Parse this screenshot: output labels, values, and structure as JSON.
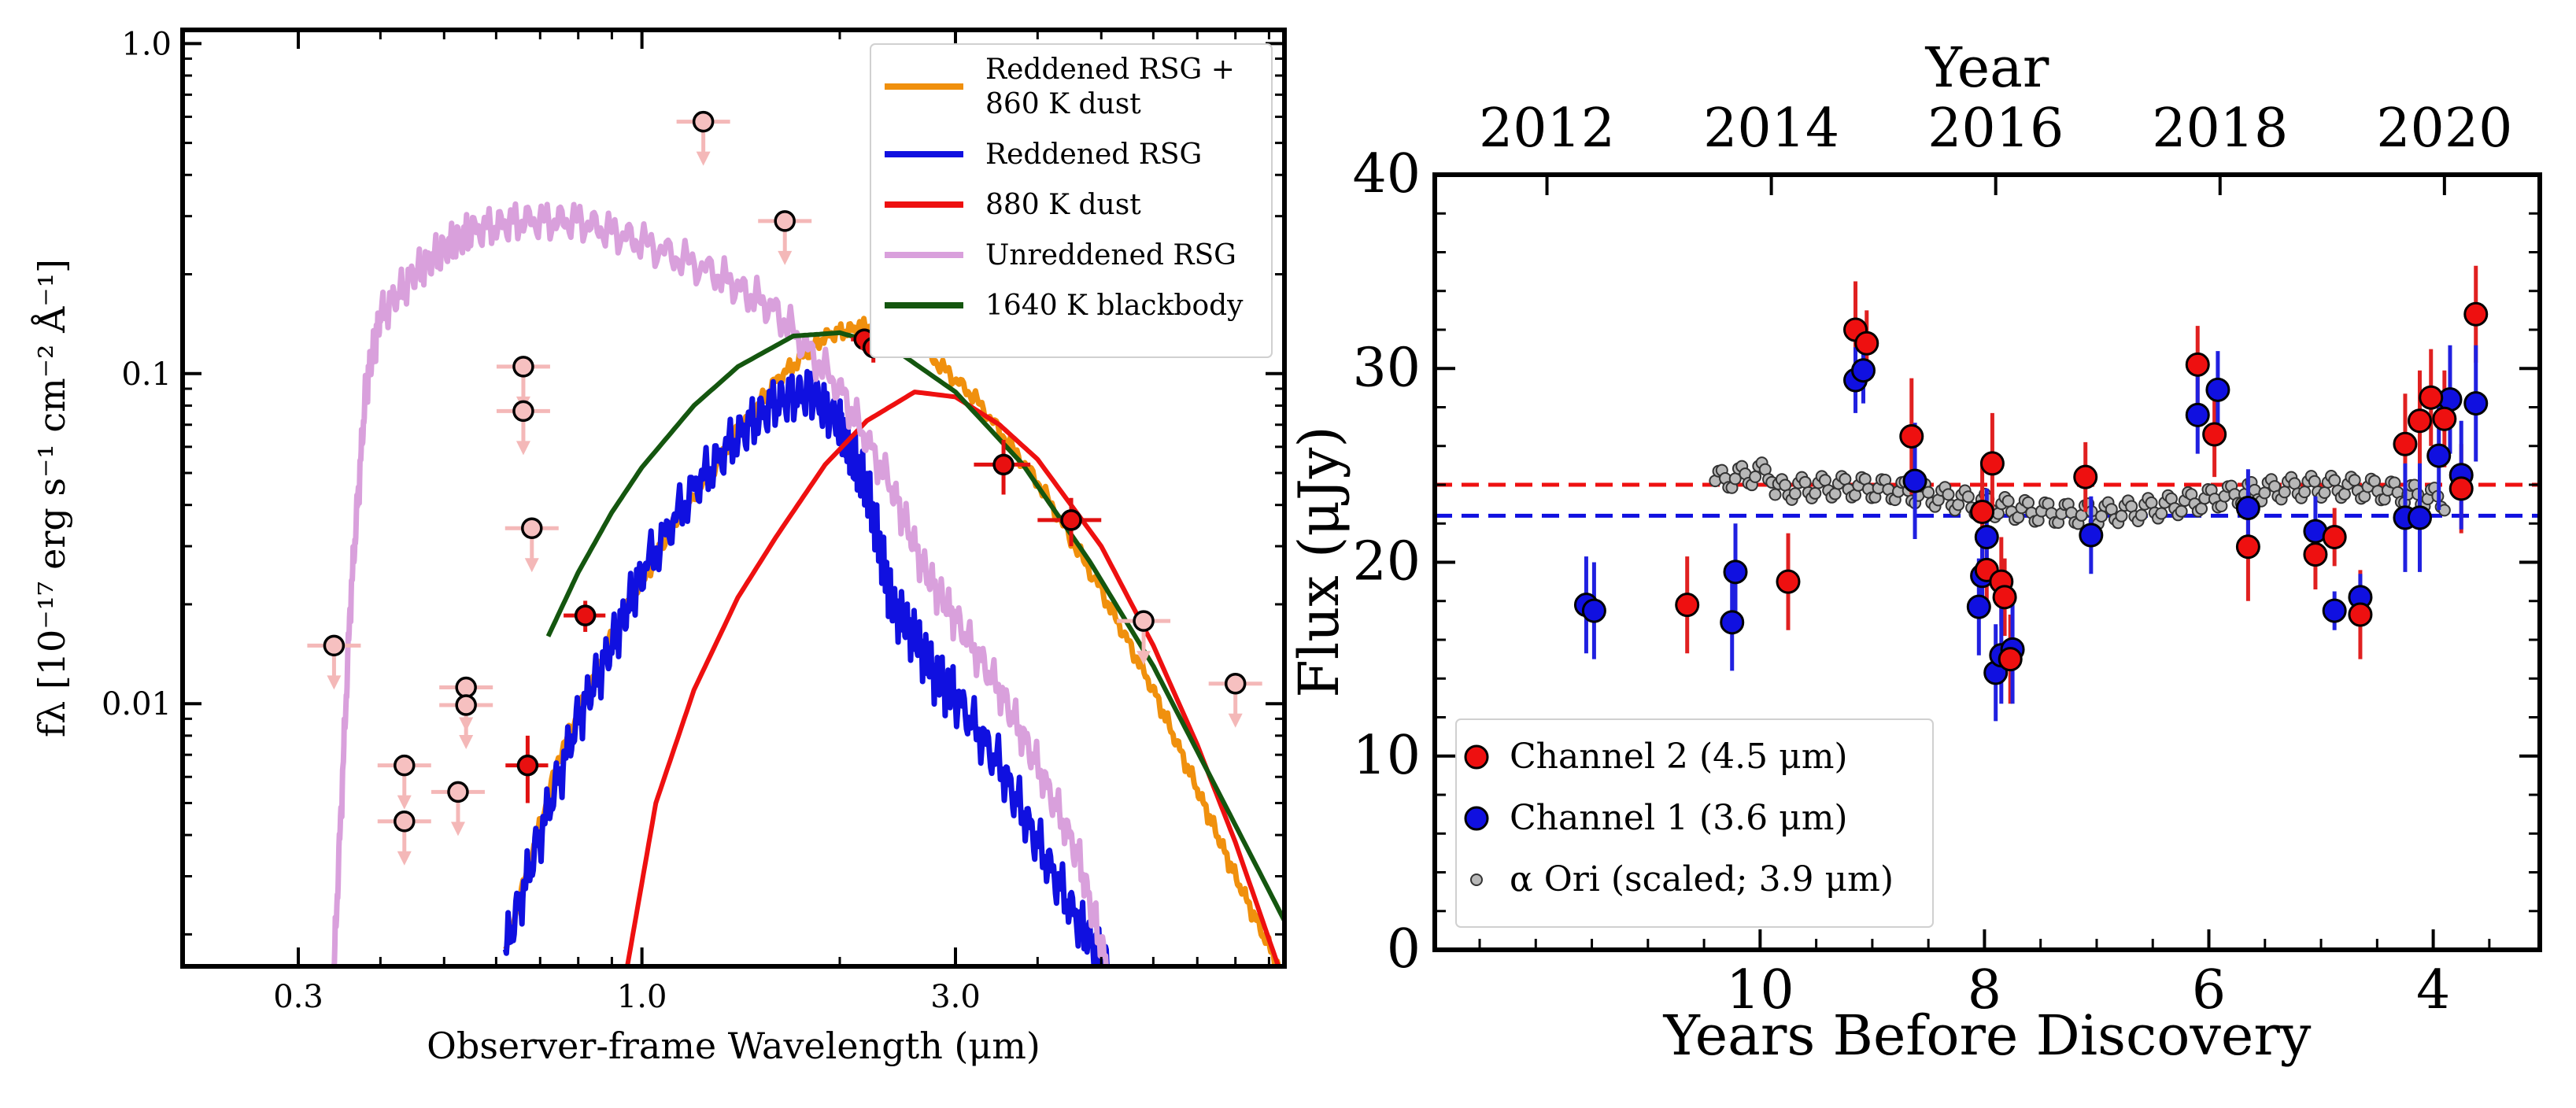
{
  "figure": {
    "panels": 2
  },
  "chart_data": [
    {
      "type": "line",
      "scale": "log-log",
      "title": "",
      "xlabel": "Observer-frame Wavelength (μm)",
      "ylabel": "fλ [10⁻¹⁷ erg s⁻¹ cm⁻² Å⁻¹]",
      "xlim": [
        0.2,
        9.5
      ],
      "ylim": [
        0.0016,
        1.1
      ],
      "xticks": [
        {
          "v": 0.3,
          "label": "0.3"
        },
        {
          "v": 1.0,
          "label": "1.0"
        },
        {
          "v": 3.0,
          "label": "3.0"
        }
      ],
      "yticks": [
        {
          "v": 0.01,
          "label": "0.01"
        },
        {
          "v": 0.1,
          "label": "0.1"
        },
        {
          "v": 1.0,
          "label": "1.0"
        }
      ],
      "legend_position": "top-right",
      "series": [
        {
          "name": "Reddened RSG + 860 K dust",
          "label_lines": [
            "Reddened RSG +",
            "860 K dust"
          ],
          "color": "#f0900d",
          "x": [
            0.62,
            0.75,
            0.9,
            1.1,
            1.35,
            1.6,
            1.9,
            2.2,
            2.6,
            3.2,
            4.0,
            5.0,
            6.0,
            7.0,
            8.0,
            9.3
          ],
          "y": [
            0.0018,
            0.007,
            0.016,
            0.033,
            0.06,
            0.095,
            0.13,
            0.14,
            0.125,
            0.085,
            0.047,
            0.022,
            0.011,
            0.0055,
            0.003,
            0.0016
          ]
        },
        {
          "name": "Reddened RSG",
          "label_lines": [
            "Reddened RSG"
          ],
          "color": "#1010e0",
          "x": [
            0.62,
            0.7,
            0.8,
            0.9,
            1.0,
            1.2,
            1.4,
            1.6,
            1.8,
            2.0,
            2.1,
            2.2,
            2.3,
            2.4,
            2.6,
            2.8,
            3.0,
            3.5,
            4.0,
            4.6,
            5.1
          ],
          "y": [
            0.0018,
            0.004,
            0.009,
            0.015,
            0.025,
            0.045,
            0.065,
            0.082,
            0.088,
            0.07,
            0.055,
            0.045,
            0.03,
            0.02,
            0.016,
            0.012,
            0.0105,
            0.0065,
            0.0038,
            0.0022,
            0.0016
          ]
        },
        {
          "name": "880 K dust",
          "label_lines": [
            "880 K dust"
          ],
          "color": "#ee1010",
          "x": [
            0.95,
            1.05,
            1.2,
            1.4,
            1.6,
            1.9,
            2.2,
            2.6,
            3.0,
            3.5,
            4.0,
            5.0,
            6.0,
            7.0,
            8.0,
            9.3
          ],
          "y": [
            0.0016,
            0.005,
            0.011,
            0.021,
            0.032,
            0.053,
            0.072,
            0.088,
            0.085,
            0.07,
            0.055,
            0.03,
            0.015,
            0.0075,
            0.0038,
            0.0016
          ]
        },
        {
          "name": "Unreddened RSG",
          "label_lines": [
            "Unreddened RSG"
          ],
          "color": "#d9a0dc",
          "x": [
            0.34,
            0.36,
            0.38,
            0.4,
            0.45,
            0.5,
            0.55,
            0.65,
            0.8,
            1.0,
            1.3,
            1.6,
            2.0,
            2.4,
            2.7,
            3.0,
            3.5,
            4.0,
            4.6,
            5.1
          ],
          "y": [
            0.0016,
            0.02,
            0.09,
            0.15,
            0.2,
            0.24,
            0.27,
            0.29,
            0.29,
            0.25,
            0.2,
            0.155,
            0.09,
            0.045,
            0.025,
            0.018,
            0.011,
            0.0065,
            0.0035,
            0.0016
          ]
        },
        {
          "name": "1640 K blackbody",
          "label_lines": [
            "1640 K blackbody"
          ],
          "color": "#14560f",
          "x": [
            0.72,
            0.8,
            0.9,
            1.0,
            1.2,
            1.4,
            1.7,
            2.0,
            2.4,
            3.0,
            3.8,
            4.8,
            6.0,
            7.5,
            9.5
          ],
          "y": [
            0.016,
            0.025,
            0.038,
            0.052,
            0.08,
            0.105,
            0.13,
            0.133,
            0.12,
            0.088,
            0.053,
            0.027,
            0.013,
            0.0055,
            0.0022
          ]
        }
      ],
      "detections": [
        {
          "x": 0.82,
          "y": 0.0185,
          "xerr": 0.06,
          "yerr": 0.002
        },
        {
          "x": 0.67,
          "y": 0.0065,
          "xerr": 0.05,
          "yerr": 0.0015
        },
        {
          "x": 2.18,
          "y": 0.127,
          "xerr": 0.1,
          "yerr": 0.01
        },
        {
          "x": 2.25,
          "y": 0.12,
          "xerr": 0.1,
          "yerr": 0.012
        },
        {
          "x": 3.55,
          "y": 0.053,
          "xerr": 0.35,
          "yerr": 0.01
        },
        {
          "x": 4.5,
          "y": 0.036,
          "xerr": 0.5,
          "yerr": 0.006
        }
      ],
      "upper_limits": [
        {
          "x": 0.34,
          "y": 0.015
        },
        {
          "x": 0.435,
          "y": 0.0065
        },
        {
          "x": 0.435,
          "y": 0.0044
        },
        {
          "x": 0.54,
          "y": 0.0112
        },
        {
          "x": 0.54,
          "y": 0.0099
        },
        {
          "x": 0.525,
          "y": 0.0054
        },
        {
          "x": 0.66,
          "y": 0.105
        },
        {
          "x": 0.66,
          "y": 0.077
        },
        {
          "x": 0.68,
          "y": 0.034
        },
        {
          "x": 1.24,
          "y": 0.58
        },
        {
          "x": 1.65,
          "y": 0.29
        },
        {
          "x": 5.8,
          "y": 0.0178
        },
        {
          "x": 8.0,
          "y": 0.0115
        }
      ]
    },
    {
      "type": "scatter",
      "title": "Year",
      "xlabel": "Years Before Discovery",
      "ylabel": "Flux (μJy)",
      "xlim": [
        12.9,
        3.05
      ],
      "ylim": [
        0,
        40
      ],
      "xticks": [
        {
          "v": 10,
          "label": "10"
        },
        {
          "v": 8,
          "label": "8"
        },
        {
          "v": 6,
          "label": "6"
        },
        {
          "v": 4,
          "label": "4"
        }
      ],
      "yticks": [
        {
          "v": 0,
          "label": "0"
        },
        {
          "v": 10,
          "label": "10"
        },
        {
          "v": 20,
          "label": "20"
        },
        {
          "v": 30,
          "label": "30"
        },
        {
          "v": 40,
          "label": "40"
        }
      ],
      "top_axis": {
        "label": "Year",
        "ticks": [
          {
            "v": 11.9,
            "label": "2012"
          },
          {
            "v": 9.9,
            "label": "2014"
          },
          {
            "v": 7.9,
            "label": "2016"
          },
          {
            "v": 5.9,
            "label": "2018"
          },
          {
            "v": 3.9,
            "label": "2020"
          }
        ]
      },
      "hlines": [
        {
          "y": 24.0,
          "color": "#ee1010"
        },
        {
          "y": 22.4,
          "color": "#1010e0"
        }
      ],
      "legend_position": "bottom-left",
      "series": [
        {
          "name": "Channel 2 (4.5 μm)",
          "color": "#ee1010",
          "err_color": "#e02020",
          "x": [
            10.65,
            9.75,
            9.15,
            9.05,
            8.65,
            8.02,
            7.98,
            7.93,
            7.85,
            7.82,
            7.77,
            7.1,
            6.1,
            5.95,
            5.65,
            5.05,
            4.88,
            4.65,
            4.25,
            4.12,
            4.02,
            3.9,
            3.75,
            3.62
          ],
          "y": [
            17.8,
            19.0,
            32.0,
            31.3,
            26.5,
            22.6,
            19.6,
            25.1,
            19.0,
            18.2,
            15.0,
            24.4,
            30.2,
            26.6,
            20.8,
            20.4,
            21.3,
            17.3,
            26.1,
            27.3,
            28.5,
            27.4,
            23.8,
            32.8
          ],
          "yerr": [
            2.5,
            2.5,
            2.5,
            1.7,
            3.0,
            2.5,
            2.0,
            2.6,
            2.3,
            2.0,
            2.3,
            1.8,
            2.0,
            2.2,
            2.8,
            1.8,
            1.5,
            2.3,
            2.6,
            2.6,
            2.5,
            2.5,
            2.3,
            2.5
          ]
        },
        {
          "name": "Channel 1 (3.6 μm)",
          "color": "#1010e0",
          "err_color": "#2020e0",
          "x": [
            11.55,
            11.48,
            10.25,
            10.22,
            9.15,
            9.08,
            8.62,
            8.05,
            8.02,
            7.98,
            7.9,
            7.85,
            7.75,
            7.05,
            6.1,
            5.92,
            5.65,
            5.05,
            4.88,
            4.65,
            4.25,
            4.12,
            3.95,
            3.85,
            3.75,
            3.62
          ],
          "y": [
            17.8,
            17.5,
            16.9,
            19.5,
            29.4,
            29.9,
            24.2,
            17.7,
            19.3,
            21.3,
            14.3,
            15.2,
            15.5,
            21.4,
            27.6,
            28.9,
            22.8,
            21.6,
            17.5,
            18.2,
            22.3,
            22.3,
            25.5,
            28.4,
            24.5,
            28.2
          ],
          "yerr": [
            2.5,
            2.5,
            2.5,
            2.5,
            1.7,
            1.7,
            3.0,
            2.5,
            2.0,
            2.5,
            2.5,
            2.5,
            2.8,
            2.0,
            2.0,
            2.0,
            2.0,
            1.8,
            1.0,
            1.2,
            2.8,
            2.8,
            2.8,
            2.8,
            2.8,
            3.0
          ]
        },
        {
          "name": "α Ori (scaled; 3.9 μm)",
          "color": "#b8b8b8",
          "generator": "dense_cloud",
          "x_range": [
            10.4,
            3.9
          ],
          "y_center": 23.2,
          "y_spread": 1.0
        }
      ]
    }
  ]
}
